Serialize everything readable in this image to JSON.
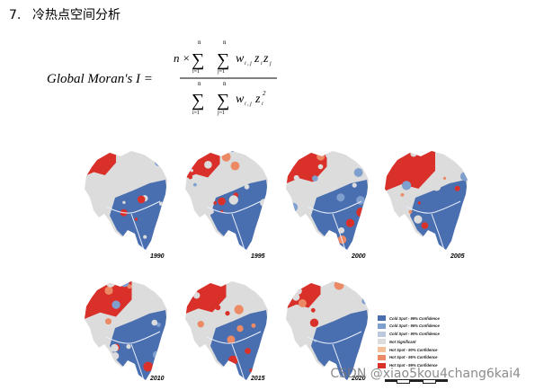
{
  "heading": {
    "number": "7.",
    "title": "冷热点空间分析"
  },
  "formula": {
    "lhs": "Global Moran's I =",
    "numerator_prefix": "n ×",
    "sum_i_bottom": "i=1",
    "sum_top": "n",
    "sum_j_bottom": "j=1",
    "numerator_term": "w",
    "numerator_sub": "i , j",
    "numerator_vars": "z",
    "denominator_term": "w",
    "denominator_sub": "i , j",
    "denominator_var": "z"
  },
  "maps": [
    {
      "year": "1990",
      "hot_level": 0.3
    },
    {
      "year": "1995",
      "hot_level": 0.35
    },
    {
      "year": "2000",
      "hot_level": 0.45
    },
    {
      "year": "2005",
      "hot_level": 0.6
    },
    {
      "year": "2010",
      "hot_level": 0.55
    },
    {
      "year": "2015",
      "hot_level": 0.45
    },
    {
      "year": "2020",
      "hot_level": 0.35
    }
  ],
  "legend": [
    {
      "label": "Cold Spot - 99% Confidence",
      "color": "#4a6fb0"
    },
    {
      "label": "Cold Spot - 95% Confidence",
      "color": "#7f9fcf"
    },
    {
      "label": "Cold Spot - 90% Confidence",
      "color": "#bcc9df"
    },
    {
      "label": "Not Significant",
      "color": "#dcdcdc"
    },
    {
      "label": "Hot Spot - 90% Confidence",
      "color": "#f3c09a"
    },
    {
      "label": "Hot Spot - 95% Confidence",
      "color": "#ec8a66"
    },
    {
      "label": "Hot Spot - 99% Confidence",
      "color": "#d9302a"
    }
  ],
  "colors": {
    "hot": "#d9302a",
    "hot_light": "#ec8a66",
    "cold": "#4a6fb0",
    "cold_light": "#7f9fcf",
    "neutral": "#dcdcdc",
    "river": "#e8eefc"
  },
  "watermark": "CSDN @xiao5kou4chang6kai4"
}
